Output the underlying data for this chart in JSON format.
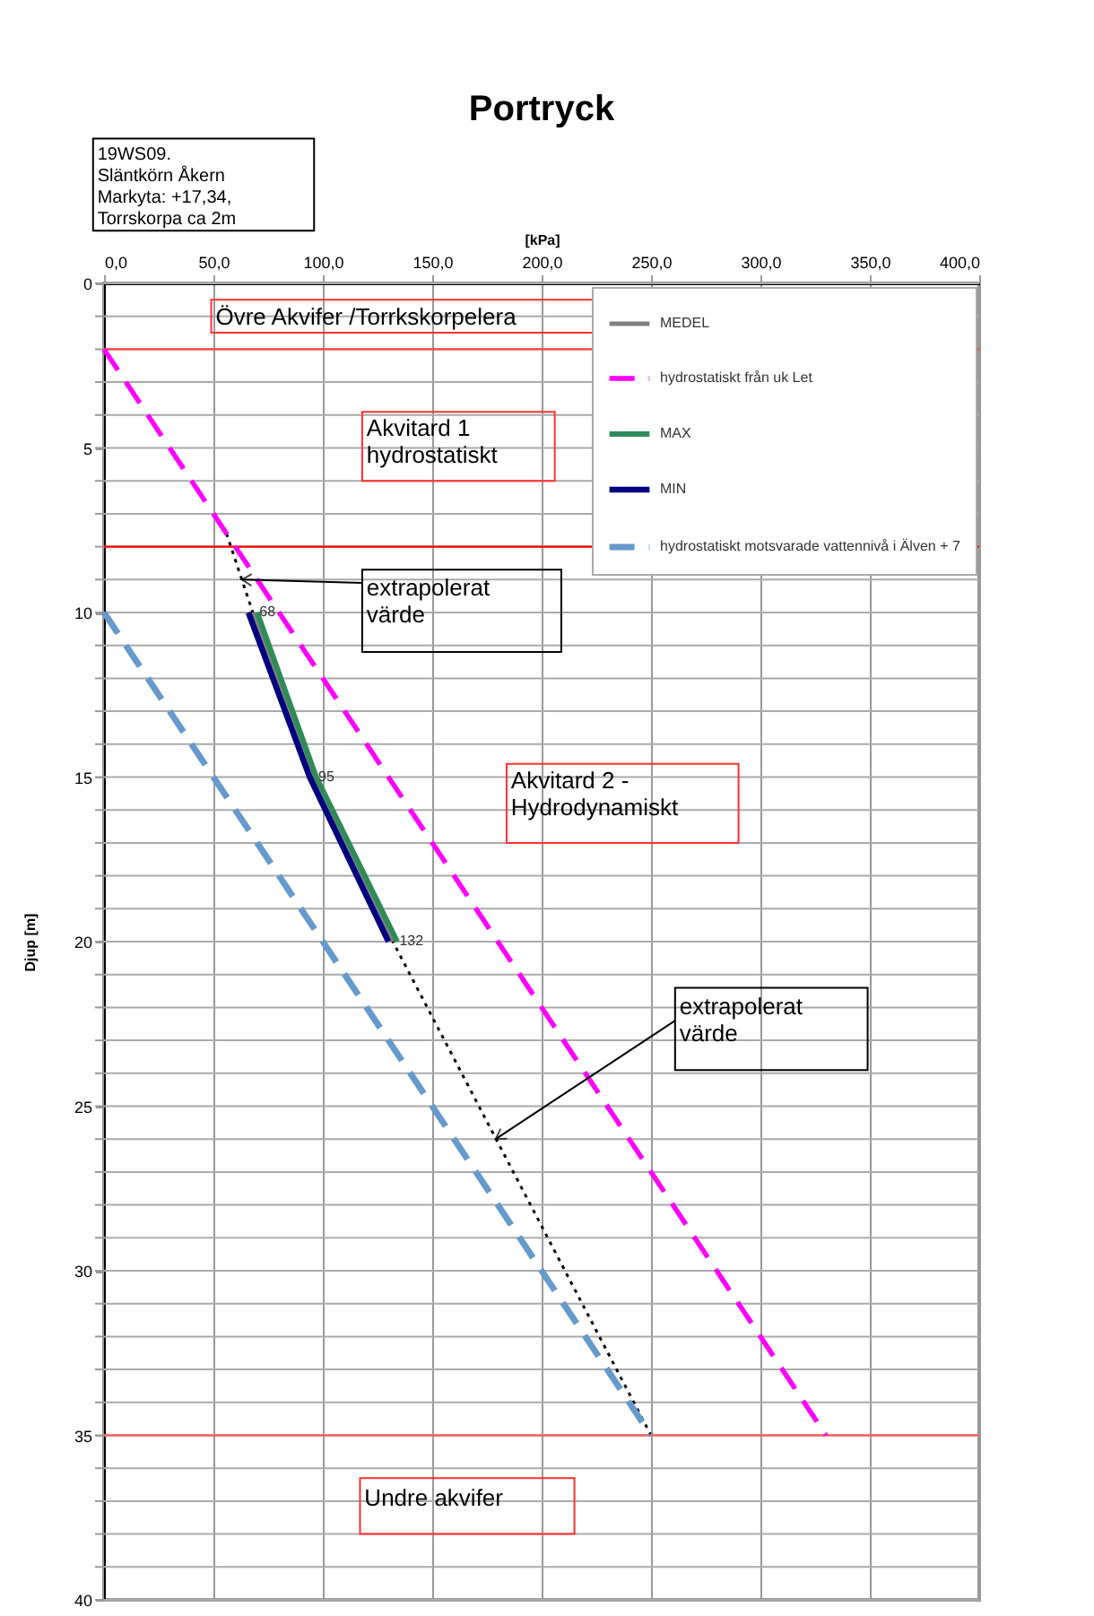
{
  "chart_data": {
    "type": "line",
    "title": "Portryck",
    "xlabel": "[kPa]",
    "ylabel": "Djup [m]",
    "xlim": [
      0,
      400
    ],
    "ylim": [
      40,
      0
    ],
    "xticks": [
      {
        "value": 0,
        "label": "0,0"
      },
      {
        "value": 50,
        "label": "50,0"
      },
      {
        "value": 100,
        "label": "100,0"
      },
      {
        "value": 150,
        "label": "150,0"
      },
      {
        "value": 200,
        "label": "200,0"
      },
      {
        "value": 250,
        "label": "250,0"
      },
      {
        "value": 300,
        "label": "300,0"
      },
      {
        "value": 350,
        "label": "350,0"
      },
      {
        "value": 400,
        "label": "400,0"
      }
    ],
    "yticks": [
      0,
      {
        "value": 1,
        "label": null
      },
      {
        "value": 2,
        "label": null
      },
      {
        "value": 3,
        "label": null
      },
      {
        "value": 4,
        "label": null
      },
      5,
      {
        "value": 6,
        "label": null
      },
      {
        "value": 7,
        "label": null
      },
      {
        "value": 8,
        "label": null
      },
      {
        "value": 9,
        "label": null
      },
      10,
      {
        "value": 11,
        "label": null
      },
      {
        "value": 12,
        "label": null
      },
      {
        "value": 13,
        "label": null
      },
      {
        "value": 14,
        "label": null
      },
      15,
      {
        "value": 16,
        "label": null
      },
      {
        "value": 17,
        "label": null
      },
      {
        "value": 18,
        "label": null
      },
      {
        "value": 19,
        "label": null
      },
      20,
      {
        "value": 21,
        "label": null
      },
      {
        "value": 22,
        "label": null
      },
      {
        "value": 23,
        "label": null
      },
      {
        "value": 24,
        "label": null
      },
      25,
      {
        "value": 26,
        "label": null
      },
      {
        "value": 27,
        "label": null
      },
      {
        "value": 28,
        "label": null
      },
      {
        "value": 29,
        "label": null
      },
      30,
      {
        "value": 31,
        "label": null
      },
      {
        "value": 32,
        "label": null
      },
      {
        "value": 33,
        "label": null
      },
      {
        "value": 34,
        "label": null
      },
      35,
      {
        "value": 36,
        "label": null
      },
      {
        "value": 37,
        "label": null
      },
      {
        "value": 38,
        "label": null
      },
      {
        "value": 39,
        "label": null
      },
      40
    ],
    "grid": true,
    "legend": "top right",
    "marker": "none",
    "series": [
      {
        "type": "line",
        "color": "#000000",
        "line_style": "dotted",
        "x": [
          56,
          68,
          95,
          132,
          250
        ],
        "values": [
          7.6,
          10,
          15,
          20,
          35
        ]
      },
      {
        "name": "MEDEL",
        "color": "#808080",
        "line_style": "solid",
        "x": [
          68,
          95,
          132
        ],
        "values": [
          10,
          15,
          20
        ]
      },
      {
        "name": "hydrostatiskt från uk Let",
        "color": "#ff00ff",
        "line_style": "dashed",
        "x": [
          0,
          330
        ],
        "values": [
          2,
          35
        ]
      },
      {
        "name": "MAX",
        "color": "#2e8b57",
        "line_style": "solid",
        "x": [
          70,
          97,
          134
        ],
        "values": [
          10,
          15,
          20
        ]
      },
      {
        "name": "MIN",
        "color": "#000080",
        "line_style": "solid",
        "x": [
          66,
          94,
          130
        ],
        "values": [
          10,
          15,
          20
        ]
      },
      {
        "name": "hydrostatiskt motsvarade vattennivå i Älven + 7",
        "color": "#6699cc",
        "line_style": "dashed",
        "x": [
          0,
          250
        ],
        "values": [
          10,
          35
        ]
      }
    ],
    "ref_lines": [
      {
        "axis": "y",
        "value": 2,
        "color": "#ff4040"
      },
      {
        "axis": "y",
        "value": 8,
        "color": "#ff0000"
      },
      {
        "axis": "y",
        "value": 35,
        "color": "#ff6060"
      }
    ],
    "annotations": [
      "19WS09.\nSläntkörn Åkern\nMarkyta: +17,34,\nTorrskorpa ca 2m",
      "Övre Akvifer /Torrkskorpelera",
      "Akvitard 1\nhydrostatiskt",
      "Akvitard 2 -\nHydrodynamiskt",
      "Undre akvifer",
      {
        "text": "extrapolerat\nvärde",
        "x": 63,
        "y": 9
      },
      {
        "text": "extrapolerat\nvärde",
        "x": 179,
        "y": 26
      },
      {
        "text": "68",
        "x": 68,
        "y": 10
      },
      {
        "text": "95",
        "x": 95,
        "y": 15
      },
      {
        "text": "132",
        "x": 132,
        "y": 20
      }
    ]
  }
}
